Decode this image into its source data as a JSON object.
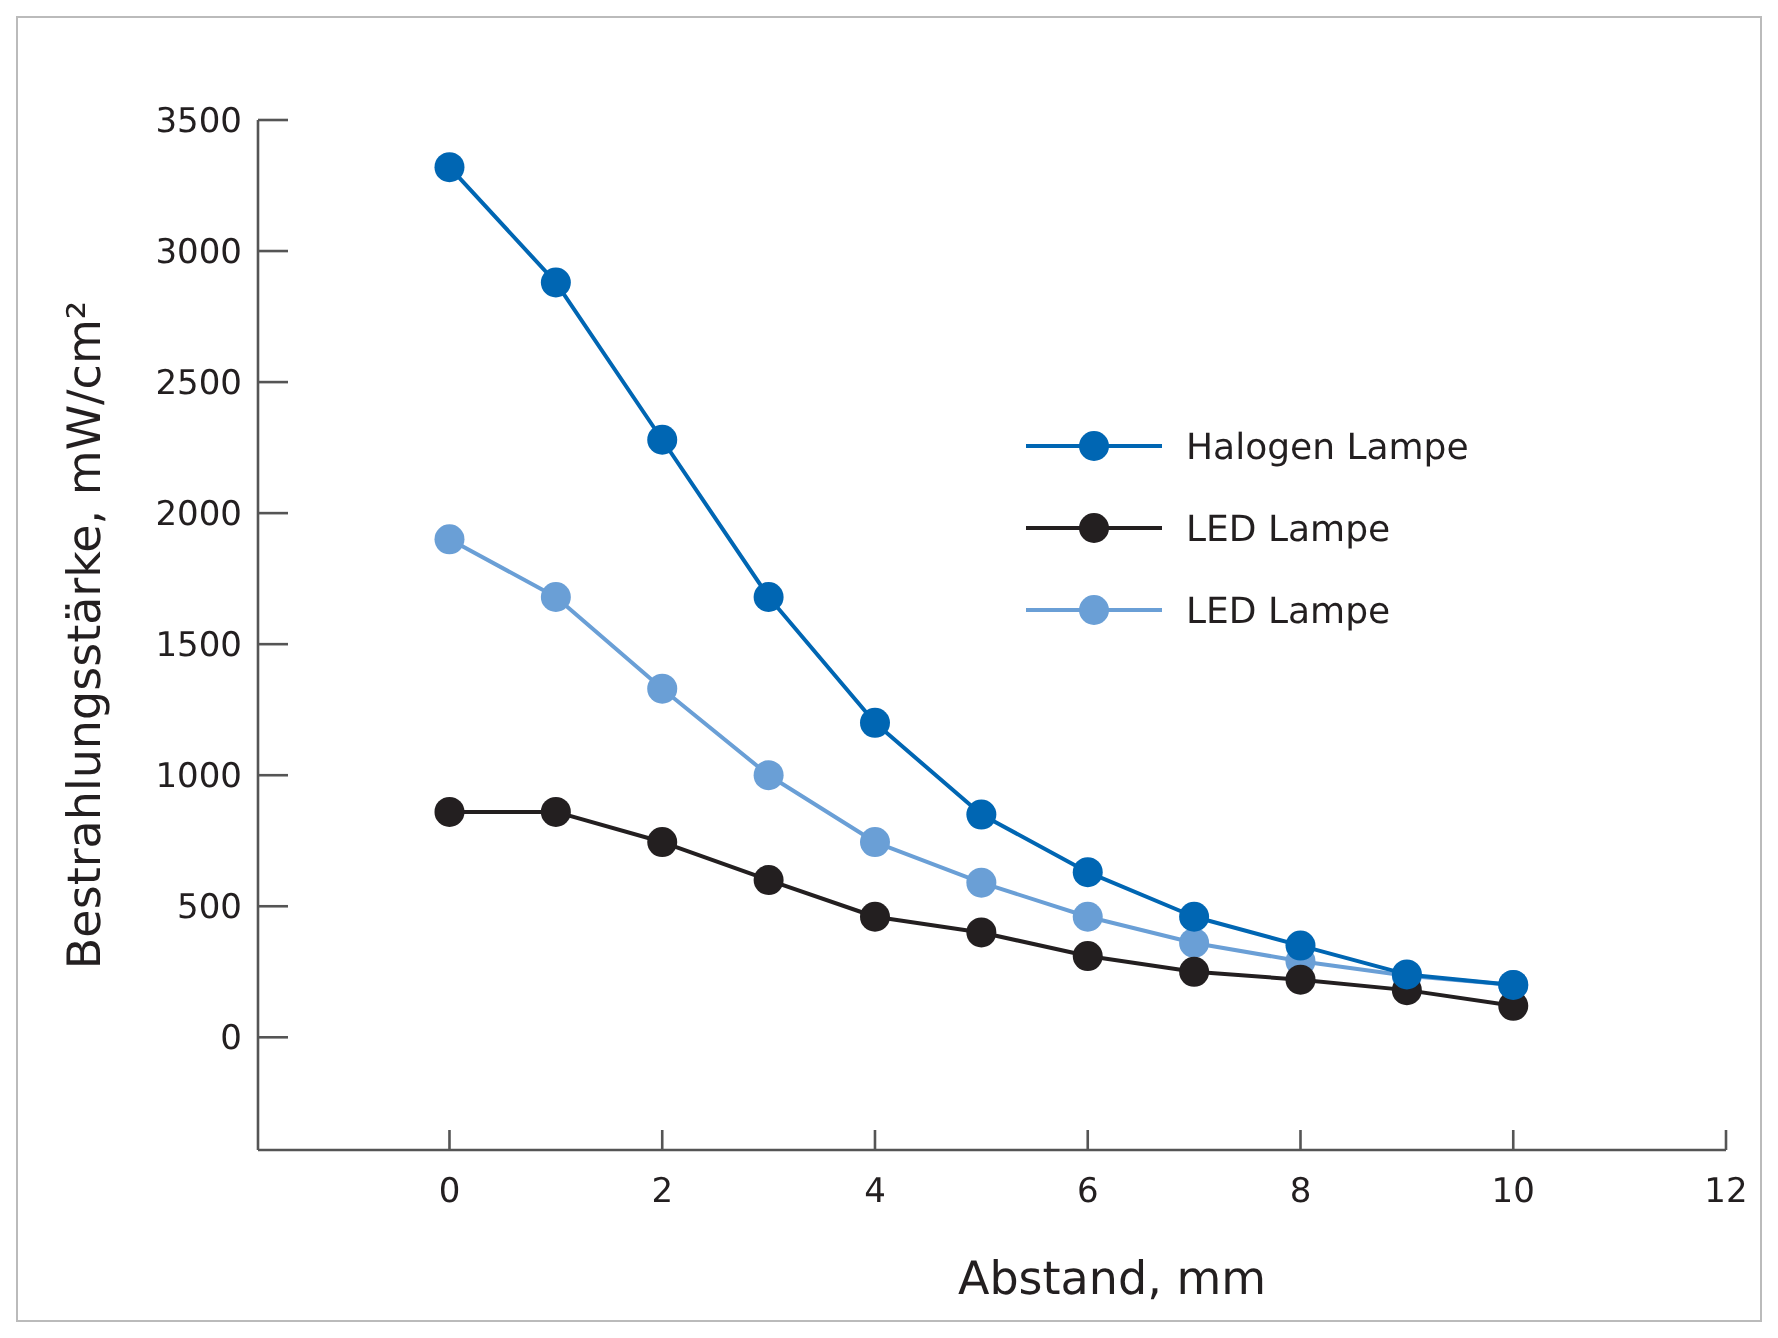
{
  "chart_data": {
    "type": "line",
    "xlabel": "Abstand, mm",
    "ylabel": "Bestrahlungsstärke, mW/cm²",
    "x": [
      0,
      1,
      2,
      3,
      4,
      5,
      6,
      7,
      8,
      9,
      10
    ],
    "xlim": [
      -1.8,
      12
    ],
    "xticks": [
      0,
      2,
      4,
      6,
      8,
      10,
      12
    ],
    "ylim": [
      -430,
      3500
    ],
    "yticks": [
      0,
      500,
      1000,
      1500,
      2000,
      2500,
      3000,
      3500
    ],
    "grid": false,
    "legend": "right",
    "marker": "circle",
    "line_style": "solid",
    "series": [
      {
        "name": "Halogen Lampe",
        "color": "#0066b3",
        "values": [
          3320,
          2880,
          2280,
          1680,
          1200,
          850,
          630,
          460,
          350,
          240,
          200
        ]
      },
      {
        "name": "LED Lampe",
        "color": "#231f20",
        "values": [
          860,
          860,
          745,
          600,
          460,
          400,
          310,
          250,
          220,
          180,
          120
        ]
      },
      {
        "name": "LED Lampe",
        "color": "#6a9fd6",
        "values": [
          1900,
          1680,
          1330,
          1000,
          745,
          590,
          460,
          360,
          290,
          235,
          200
        ]
      }
    ]
  }
}
